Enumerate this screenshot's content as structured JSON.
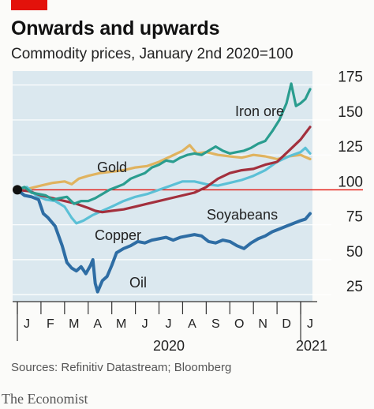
{
  "header": {
    "title": "Onwards and upwards",
    "subtitle": "Commodity prices, January 2nd 2020=100"
  },
  "footer": {
    "source": "Sources: Refinitiv Datastream; Bloomberg",
    "brand": "The Economist"
  },
  "colors": {
    "iron_ore": "#2a9d8f",
    "gold": "#e0b35f",
    "copper": "#5bc0d6",
    "soyabeans": "#a3303d",
    "oil": "#2e6da4",
    "baseline": "#e3120b",
    "plot_background": "#dbe8ef",
    "brand_red": "#e3120b"
  },
  "chart_data": {
    "type": "line",
    "title": "Onwards and upwards",
    "subtitle": "Commodity prices, January 2nd 2020=100",
    "ylim": [
      20,
      185
    ],
    "yticks": [
      25,
      50,
      75,
      100,
      125,
      150,
      175
    ],
    "y_axis_position": "right",
    "xlim": [
      0,
      12.5
    ],
    "month_ticks": [
      "J",
      "F",
      "M",
      "A",
      "M",
      "J",
      "J",
      "A",
      "S",
      "O",
      "N",
      "D",
      "J"
    ],
    "year_labels": [
      "2020",
      "2021"
    ],
    "reference_line": 100,
    "grid": "horizontal",
    "series": [
      {
        "name": "Iron ore",
        "points": [
          [
            0,
            100
          ],
          [
            0.3,
            102
          ],
          [
            0.6,
            98
          ],
          [
            0.9,
            97
          ],
          [
            1.2,
            96
          ],
          [
            1.5,
            93
          ],
          [
            1.8,
            94
          ],
          [
            2.1,
            95
          ],
          [
            2.4,
            90
          ],
          [
            2.7,
            92
          ],
          [
            3.0,
            92
          ],
          [
            3.3,
            94
          ],
          [
            3.6,
            97
          ],
          [
            3.9,
            100
          ],
          [
            4.2,
            102
          ],
          [
            4.5,
            104
          ],
          [
            4.8,
            108
          ],
          [
            5.1,
            110
          ],
          [
            5.4,
            112
          ],
          [
            5.7,
            116
          ],
          [
            6.0,
            118
          ],
          [
            6.3,
            121
          ],
          [
            6.6,
            120
          ],
          [
            6.9,
            123
          ],
          [
            7.2,
            125
          ],
          [
            7.5,
            126
          ],
          [
            7.8,
            125
          ],
          [
            8.1,
            128
          ],
          [
            8.4,
            131
          ],
          [
            8.7,
            128
          ],
          [
            9.0,
            126
          ],
          [
            9.3,
            127
          ],
          [
            9.6,
            128
          ],
          [
            9.9,
            130
          ],
          [
            10.2,
            133
          ],
          [
            10.5,
            135
          ],
          [
            10.8,
            142
          ],
          [
            11.1,
            150
          ],
          [
            11.4,
            162
          ],
          [
            11.6,
            176
          ],
          [
            11.8,
            160
          ],
          [
            12.0,
            162
          ],
          [
            12.2,
            165
          ],
          [
            12.4,
            172
          ]
        ]
      },
      {
        "name": "Gold",
        "points": [
          [
            0,
            100
          ],
          [
            0.5,
            101
          ],
          [
            1.0,
            103
          ],
          [
            1.5,
            105
          ],
          [
            2.0,
            106
          ],
          [
            2.3,
            104
          ],
          [
            2.6,
            108
          ],
          [
            3.0,
            110
          ],
          [
            3.5,
            112
          ],
          [
            4.0,
            113
          ],
          [
            4.5,
            114
          ],
          [
            5.0,
            116
          ],
          [
            5.5,
            117
          ],
          [
            6.0,
            120
          ],
          [
            6.5,
            124
          ],
          [
            7.0,
            128
          ],
          [
            7.3,
            132
          ],
          [
            7.6,
            126
          ],
          [
            8.0,
            127
          ],
          [
            8.5,
            125
          ],
          [
            9.0,
            124
          ],
          [
            9.5,
            123
          ],
          [
            10.0,
            125
          ],
          [
            10.5,
            124
          ],
          [
            11.0,
            122
          ],
          [
            11.5,
            124
          ],
          [
            12.0,
            125
          ],
          [
            12.4,
            122
          ]
        ]
      },
      {
        "name": "Copper",
        "points": [
          [
            0,
            100
          ],
          [
            0.4,
            102
          ],
          [
            0.8,
            96
          ],
          [
            1.2,
            93
          ],
          [
            1.6,
            92
          ],
          [
            2.0,
            88
          ],
          [
            2.3,
            80
          ],
          [
            2.5,
            76
          ],
          [
            2.8,
            78
          ],
          [
            3.2,
            82
          ],
          [
            3.6,
            85
          ],
          [
            4.0,
            88
          ],
          [
            4.5,
            92
          ],
          [
            5.0,
            95
          ],
          [
            5.5,
            97
          ],
          [
            6.0,
            100
          ],
          [
            6.5,
            103
          ],
          [
            7.0,
            106
          ],
          [
            7.5,
            106
          ],
          [
            8.0,
            104
          ],
          [
            8.5,
            103
          ],
          [
            9.0,
            105
          ],
          [
            9.5,
            107
          ],
          [
            10.0,
            110
          ],
          [
            10.5,
            114
          ],
          [
            11.0,
            120
          ],
          [
            11.5,
            124
          ],
          [
            12.0,
            127
          ],
          [
            12.2,
            130
          ],
          [
            12.4,
            126
          ]
        ]
      },
      {
        "name": "Soyabeans",
        "points": [
          [
            0,
            100
          ],
          [
            0.5,
            99
          ],
          [
            1.0,
            96
          ],
          [
            1.5,
            94
          ],
          [
            2.0,
            92
          ],
          [
            2.5,
            90
          ],
          [
            3.0,
            87
          ],
          [
            3.3,
            85
          ],
          [
            3.6,
            84
          ],
          [
            4.0,
            85
          ],
          [
            4.5,
            86
          ],
          [
            5.0,
            88
          ],
          [
            5.5,
            90
          ],
          [
            6.0,
            92
          ],
          [
            6.5,
            94
          ],
          [
            7.0,
            96
          ],
          [
            7.5,
            98
          ],
          [
            8.0,
            102
          ],
          [
            8.5,
            108
          ],
          [
            9.0,
            112
          ],
          [
            9.5,
            114
          ],
          [
            10.0,
            115
          ],
          [
            10.5,
            118
          ],
          [
            11.0,
            120
          ],
          [
            11.5,
            128
          ],
          [
            12.0,
            136
          ],
          [
            12.4,
            145
          ]
        ]
      },
      {
        "name": "Oil",
        "points": [
          [
            0,
            100
          ],
          [
            0.3,
            96
          ],
          [
            0.6,
            95
          ],
          [
            0.9,
            93
          ],
          [
            1.1,
            83
          ],
          [
            1.3,
            80
          ],
          [
            1.6,
            74
          ],
          [
            1.9,
            60
          ],
          [
            2.1,
            48
          ],
          [
            2.3,
            44
          ],
          [
            2.5,
            42
          ],
          [
            2.7,
            45
          ],
          [
            2.9,
            40
          ],
          [
            3.1,
            46
          ],
          [
            3.2,
            50
          ],
          [
            3.3,
            33
          ],
          [
            3.4,
            27
          ],
          [
            3.6,
            35
          ],
          [
            3.8,
            38
          ],
          [
            4.0,
            46
          ],
          [
            4.2,
            55
          ],
          [
            4.5,
            58
          ],
          [
            4.8,
            60
          ],
          [
            5.1,
            63
          ],
          [
            5.4,
            62
          ],
          [
            5.7,
            64
          ],
          [
            6.0,
            65
          ],
          [
            6.3,
            66
          ],
          [
            6.6,
            64
          ],
          [
            6.9,
            66
          ],
          [
            7.2,
            67
          ],
          [
            7.5,
            68
          ],
          [
            7.8,
            67
          ],
          [
            8.1,
            63
          ],
          [
            8.4,
            62
          ],
          [
            8.7,
            64
          ],
          [
            9.0,
            63
          ],
          [
            9.3,
            60
          ],
          [
            9.6,
            58
          ],
          [
            9.9,
            62
          ],
          [
            10.2,
            65
          ],
          [
            10.5,
            67
          ],
          [
            10.8,
            70
          ],
          [
            11.1,
            72
          ],
          [
            11.4,
            74
          ],
          [
            11.7,
            76
          ],
          [
            12.0,
            78
          ],
          [
            12.2,
            79
          ],
          [
            12.4,
            83
          ]
        ]
      }
    ],
    "annotations": [
      {
        "text": "Iron ore",
        "series": "Iron ore"
      },
      {
        "text": "Gold",
        "series": "Gold"
      },
      {
        "text": "Copper",
        "series": "Copper"
      },
      {
        "text": "Soyabeans",
        "series": "Soyabeans"
      },
      {
        "text": "Oil",
        "series": "Oil"
      }
    ]
  }
}
